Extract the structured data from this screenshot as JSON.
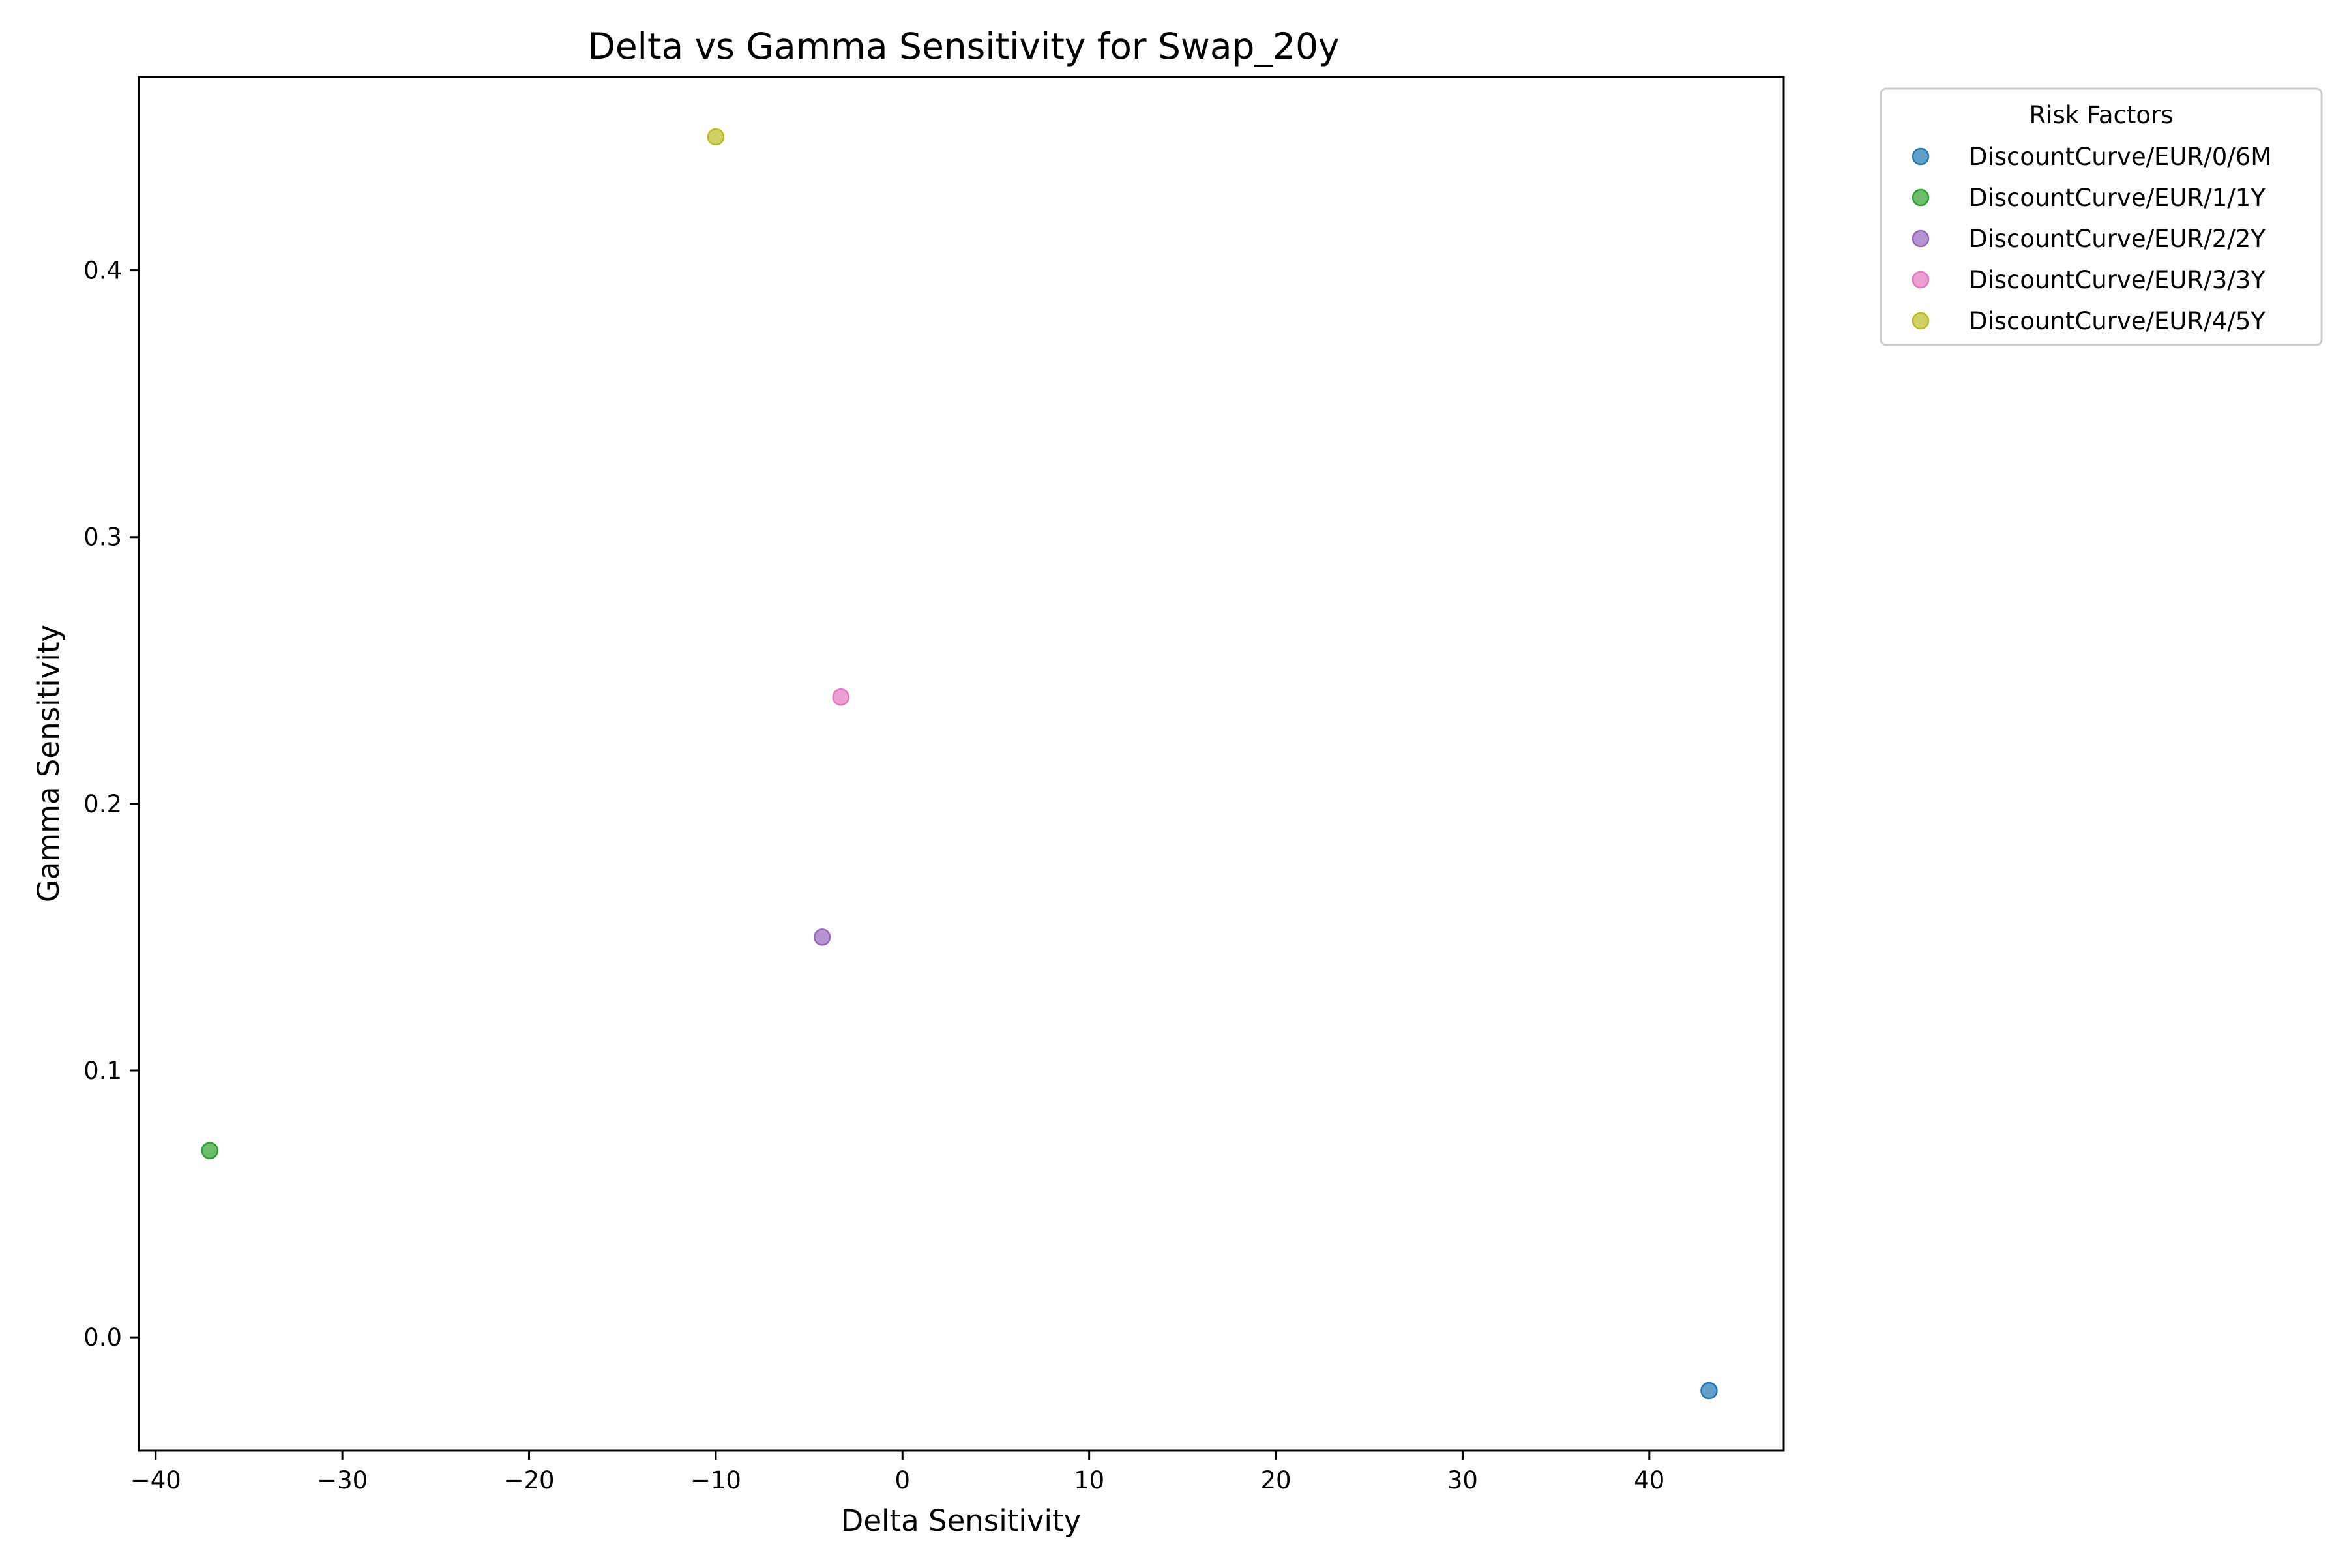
{
  "chart_data": {
    "type": "scatter",
    "title": "Delta vs Gamma Sensitivity for Swap_20y",
    "xlabel": "Delta Sensitivity",
    "ylabel": "Gamma Sensitivity",
    "xlim": [
      -40.9,
      47.2
    ],
    "ylim": [
      -0.0425,
      0.4725
    ],
    "xticks": [
      -40,
      -30,
      -20,
      -10,
      0,
      10,
      20,
      30,
      40
    ],
    "xtick_labels": [
      "−40",
      "−30",
      "−20",
      "−10",
      "0",
      "10",
      "20",
      "30",
      "40"
    ],
    "yticks": [
      0.0,
      0.1,
      0.2,
      0.3,
      0.4
    ],
    "ytick_labels": [
      "0.0",
      "0.1",
      "0.2",
      "0.3",
      "0.4"
    ],
    "grid": false,
    "legend": {
      "title": "Risk Factors",
      "placement": "outside-top-right"
    },
    "series": [
      {
        "name": "DiscountCurve/EUR/0/6M",
        "color": "#1f77b4",
        "points": [
          {
            "x": 43.2,
            "y": -0.02
          }
        ]
      },
      {
        "name": "DiscountCurve/EUR/1/1Y",
        "color": "#2ca02c",
        "points": [
          {
            "x": -37.1,
            "y": 0.07
          }
        ]
      },
      {
        "name": "DiscountCurve/EUR/2/2Y",
        "color": "#9467bd",
        "points": [
          {
            "x": -4.3,
            "y": 0.15
          }
        ]
      },
      {
        "name": "DiscountCurve/EUR/3/3Y",
        "color": "#e377c2",
        "points": [
          {
            "x": -3.3,
            "y": 0.24
          }
        ]
      },
      {
        "name": "DiscountCurve/EUR/4/5Y",
        "color": "#bcbd22",
        "points": [
          {
            "x": -10.0,
            "y": 0.45
          }
        ]
      }
    ]
  }
}
